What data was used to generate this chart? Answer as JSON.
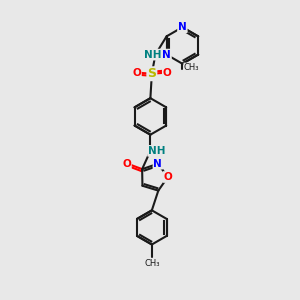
{
  "bg_color": "#e8e8e8",
  "bond_color": "#1a1a1a",
  "bond_width": 1.5,
  "atom_colors": {
    "N": "#0000ff",
    "O": "#ff0000",
    "S": "#b8b800",
    "NH": "#008080",
    "C": "#1a1a1a"
  },
  "font_size": 7.5,
  "fig_size": [
    3.0,
    3.0
  ],
  "dpi": 100,
  "xlim": [
    0,
    10
  ],
  "ylim": [
    0,
    10
  ]
}
